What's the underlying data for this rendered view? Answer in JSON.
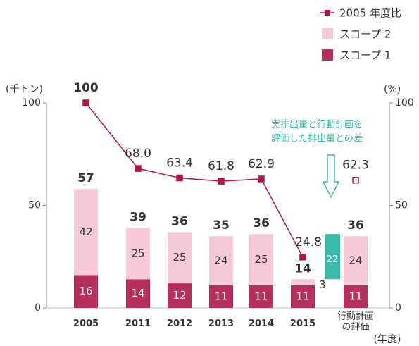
{
  "chart_data": {
    "type": "bar-line",
    "categories": [
      "2005",
      "2011",
      "2012",
      "2013",
      "2014",
      "2015",
      "行動計画の評価"
    ],
    "series": [
      {
        "name": "スコープ 1",
        "color": "#b5305e",
        "values": [
          16,
          14,
          12,
          11,
          11,
          11,
          11
        ]
      },
      {
        "name": "スコープ 2",
        "color": "#f6c9d6",
        "values": [
          42,
          25,
          25,
          24,
          25,
          3,
          24
        ]
      },
      {
        "name": "2005 年度比",
        "color": "#b0173f",
        "axis": "y2",
        "values": [
          100,
          68.0,
          63.4,
          61.8,
          62.9,
          24.8,
          62.3
        ],
        "value_labels": [
          "100",
          "68.0",
          "63.4",
          "61.8",
          "62.9",
          "24.8",
          "62.3"
        ]
      }
    ],
    "totals": [
      57,
      39,
      36,
      35,
      36,
      14,
      36
    ],
    "difference": {
      "value": 22,
      "base": 14,
      "color": "#3cb8a8"
    },
    "annotation": [
      "実排出量と行動計画を",
      "評価した排出量との差"
    ],
    "ylabel": "(千トン)",
    "y2label": "(%)",
    "xlabel": "(年度)",
    "ylim": [
      0,
      100
    ],
    "yticks": [
      0,
      50,
      100
    ],
    "y2lim": [
      0,
      100
    ],
    "y2ticks": [
      0,
      50,
      100
    ]
  }
}
